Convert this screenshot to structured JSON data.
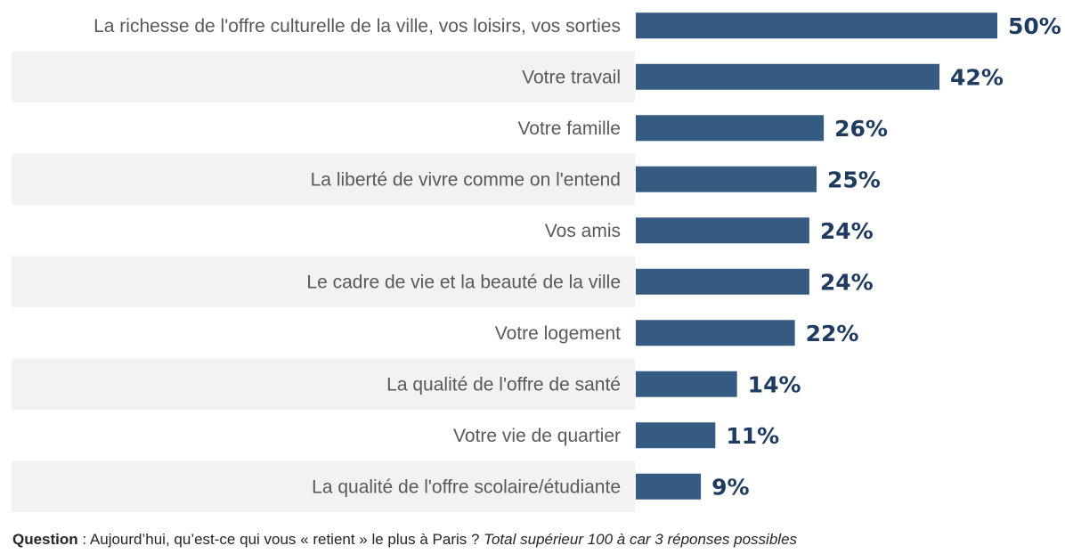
{
  "chart_data": {
    "type": "bar",
    "orientation": "horizontal",
    "categories": [
      "La richesse de l'offre culturelle de la ville, vos loisirs, vos sorties",
      "Votre travail",
      "Votre famille",
      "La liberté de vivre comme on l'entend",
      "Vos amis",
      "Le cadre de vie et la beauté de la ville",
      "Votre logement",
      "La qualité de l'offre de santé",
      "Votre vie de quartier",
      "La qualité de l'offre scolaire/étudiante"
    ],
    "values": [
      50,
      42,
      26,
      25,
      24,
      24,
      22,
      14,
      11,
      9
    ],
    "value_labels": [
      "50%",
      "42%",
      "26%",
      "25%",
      "24%",
      "24%",
      "22%",
      "14%",
      "11%",
      "9%"
    ],
    "xlim": [
      0,
      50
    ],
    "grid": false,
    "bar_color": "#365b82",
    "band_color": "#f2f2f2",
    "label_color": "#1f3b60"
  },
  "footer": {
    "question_label": "Question",
    "question_text": " : Aujourd’hui, qu’est-ce qui vous « retient » le plus à Paris ? ",
    "note": "Total supérieur 100 à car 3 réponses possibles"
  }
}
